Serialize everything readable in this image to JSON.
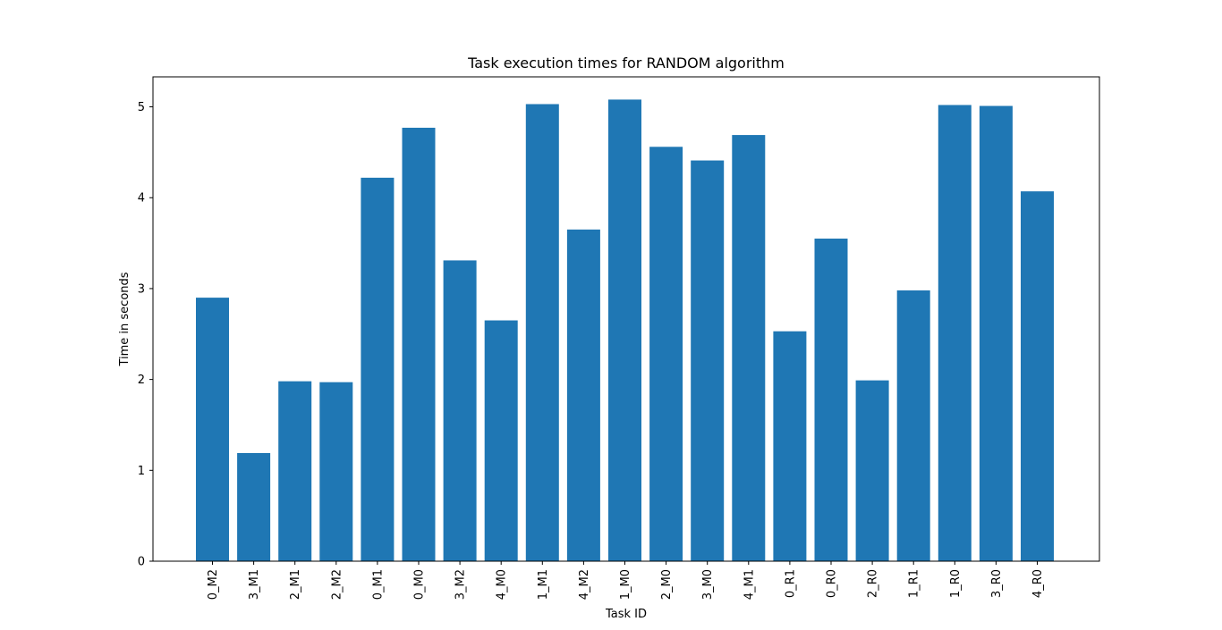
{
  "chart_data": {
    "type": "bar",
    "title": "Task execution times for RANDOM algorithm",
    "xlabel": "Task ID",
    "ylabel": "Time in seconds",
    "categories": [
      "0_M2",
      "3_M1",
      "2_M1",
      "2_M2",
      "0_M1",
      "0_M0",
      "3_M2",
      "4_M0",
      "1_M1",
      "4_M2",
      "1_M0",
      "2_M0",
      "3_M0",
      "4_M1",
      "0_R1",
      "0_R0",
      "2_R0",
      "1_R1",
      "1_R0",
      "3_R0",
      "4_R0"
    ],
    "values": [
      2.9,
      1.19,
      1.98,
      1.97,
      4.22,
      4.77,
      3.31,
      2.65,
      5.03,
      3.65,
      5.08,
      4.56,
      4.41,
      4.69,
      2.53,
      3.55,
      1.99,
      2.98,
      5.02,
      5.01,
      4.07
    ],
    "ylim": [
      0,
      5.33
    ],
    "yticks": [
      0,
      1,
      2,
      3,
      4,
      5
    ],
    "grid": false,
    "bar_color": "#1f77b4"
  }
}
